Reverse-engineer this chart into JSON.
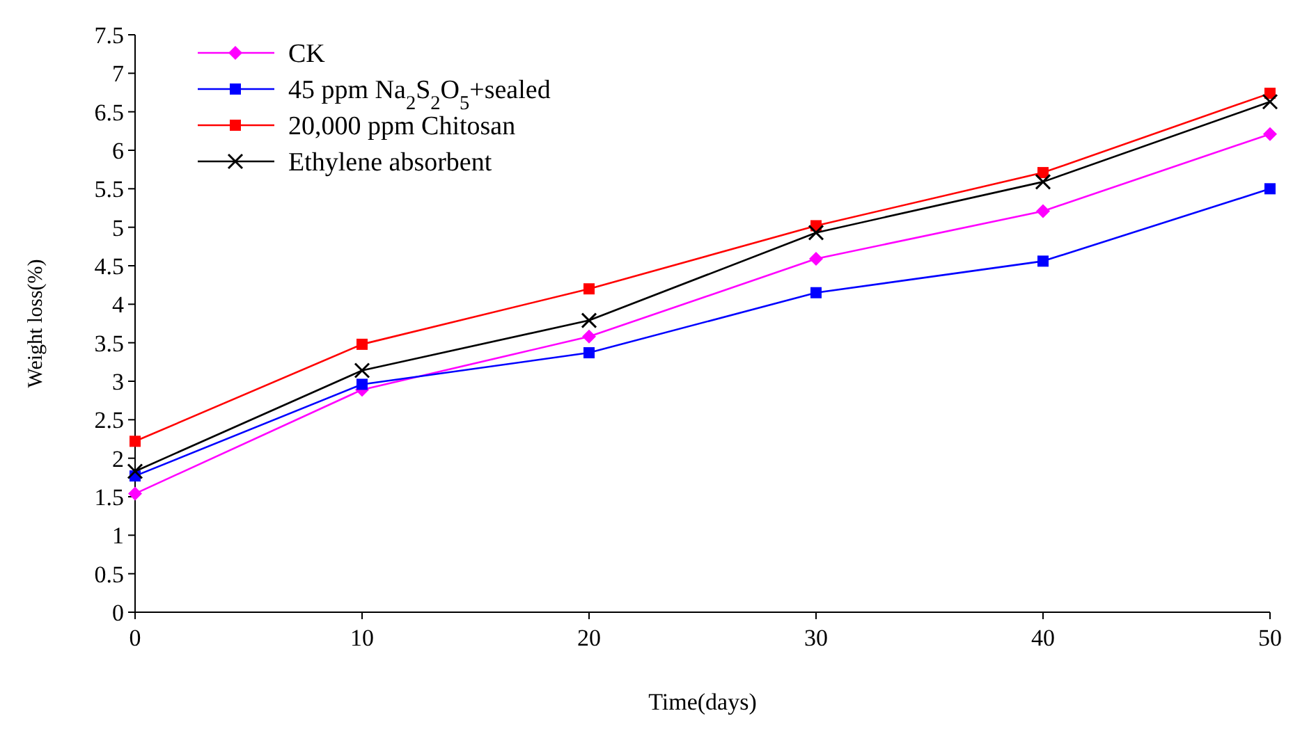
{
  "chart_data": {
    "type": "line",
    "xlabel": "Time(days)",
    "ylabel": "Weight loss(%)",
    "x": [
      0,
      10,
      20,
      30,
      40,
      50
    ],
    "xlim": [
      0,
      50
    ],
    "xticks": [
      0,
      10,
      20,
      30,
      40,
      50
    ],
    "ylim": [
      0,
      7.5
    ],
    "yticks": [
      0,
      0.5,
      1,
      1.5,
      2,
      2.5,
      3,
      3.5,
      4,
      4.5,
      5,
      5.5,
      6,
      6.5,
      7,
      7.5
    ],
    "legend": "top left",
    "grid": false,
    "series": [
      {
        "name": "CK",
        "color": "#ff00ff",
        "marker": "diamond",
        "values": [
          1.54,
          2.89,
          3.58,
          4.59,
          5.21,
          6.21
        ]
      },
      {
        "name": "45 ppm Na$_{2}$S$_{2}$O$_{5}$+sealed",
        "color": "#0000ff",
        "marker": "square",
        "values": [
          1.77,
          2.96,
          3.37,
          4.15,
          4.56,
          5.5
        ]
      },
      {
        "name": "20,000 ppm Chitosan",
        "color": "#ff0000",
        "marker": "square",
        "values": [
          2.22,
          3.48,
          4.2,
          5.02,
          5.71,
          6.74
        ]
      },
      {
        "name": "Ethylene absorbent",
        "color": "#000000",
        "marker": "cross",
        "values": [
          1.83,
          3.14,
          3.79,
          4.93,
          5.59,
          6.63
        ]
      }
    ]
  }
}
